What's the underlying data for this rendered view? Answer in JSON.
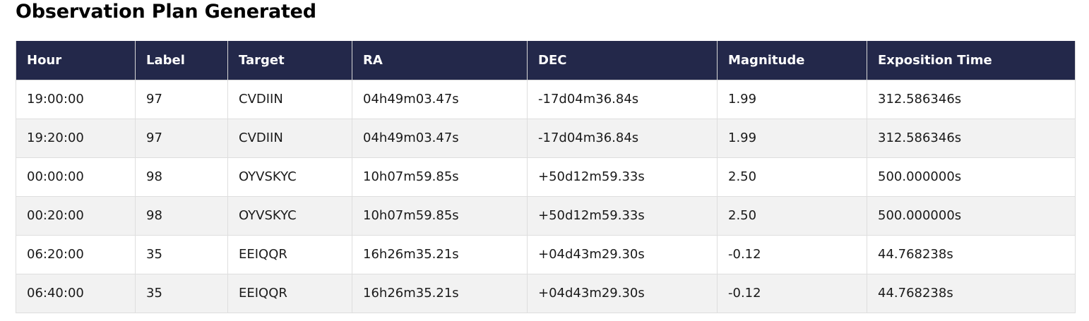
{
  "page": {
    "title": "Observation Plan Generated"
  },
  "table": {
    "columns": [
      "Hour",
      "Label",
      "Target",
      "RA",
      "DEC",
      "Magnitude",
      "Exposition Time"
    ],
    "rows": [
      [
        "19:00:00",
        "97",
        "CVDIIN",
        "04h49m03.47s",
        "-17d04m36.84s",
        "1.99",
        "312.586346s"
      ],
      [
        "19:20:00",
        "97",
        "CVDIIN",
        "04h49m03.47s",
        "-17d04m36.84s",
        "1.99",
        "312.586346s"
      ],
      [
        "00:00:00",
        "98",
        "OYVSKYC",
        "10h07m59.85s",
        "+50d12m59.33s",
        "2.50",
        "500.000000s"
      ],
      [
        "00:20:00",
        "98",
        "OYVSKYC",
        "10h07m59.85s",
        "+50d12m59.33s",
        "2.50",
        "500.000000s"
      ],
      [
        "06:20:00",
        "35",
        "EEIQQR",
        "16h26m35.21s",
        "+04d43m29.30s",
        "-0.12",
        "44.768238s"
      ],
      [
        "06:40:00",
        "35",
        "EEIQQR",
        "16h26m35.21s",
        "+04d43m29.30s",
        "-0.12",
        "44.768238s"
      ]
    ]
  },
  "colors": {
    "header_background": "#23284a",
    "header_text": "#ffffff",
    "alt_row_background": "#f2f2f2"
  }
}
